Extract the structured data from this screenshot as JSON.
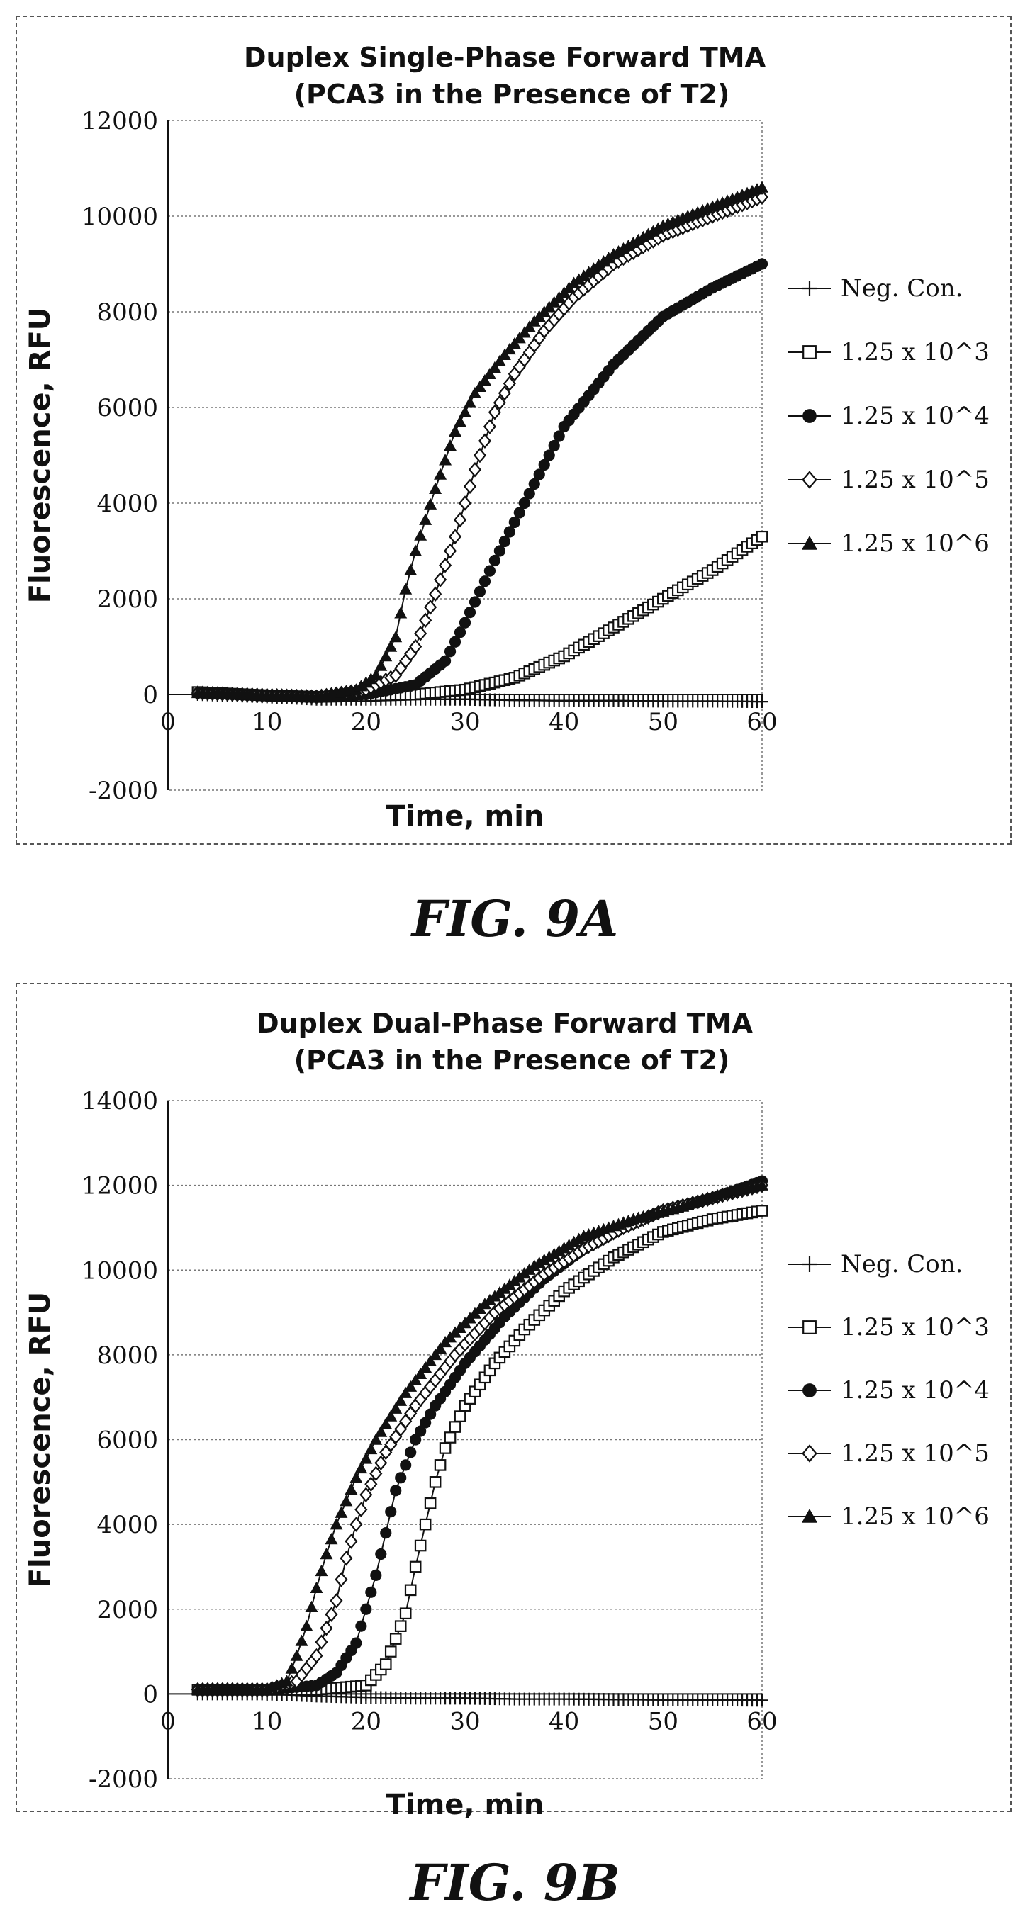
{
  "figures": [
    {
      "caption": "FIG. 9A"
    },
    {
      "caption": "FIG. 9B"
    }
  ],
  "chart_data": [
    {
      "type": "line",
      "title": "Duplex Single-Phase Forward TMA",
      "subtitle": "(PCA3 in the Presence of T2)",
      "xlabel": "Time, min",
      "ylabel": "Fluorescence, RFU",
      "xlim": [
        0,
        60
      ],
      "ylim": [
        -2000,
        12000
      ],
      "xticks": [
        0,
        10,
        20,
        30,
        40,
        50,
        60
      ],
      "yticks": [
        -2000,
        0,
        2000,
        4000,
        6000,
        8000,
        10000,
        12000
      ],
      "grid": "horizontal",
      "legend_position": "right",
      "series": [
        {
          "name": "Neg. Con.",
          "marker": "plus",
          "x": [
            3,
            10,
            15,
            20,
            25,
            30,
            35,
            40,
            45,
            50,
            55,
            60
          ],
          "y": [
            0,
            -50,
            -100,
            -100,
            -100,
            -100,
            -120,
            -130,
            -130,
            -140,
            -140,
            -150
          ]
        },
        {
          "name": "1.25 x 10^3",
          "marker": "square-open",
          "x": [
            3,
            10,
            15,
            20,
            25,
            30,
            35,
            40,
            45,
            50,
            55,
            60
          ],
          "y": [
            50,
            -20,
            -50,
            -30,
            0,
            100,
            350,
            800,
            1400,
            2000,
            2600,
            3300
          ]
        },
        {
          "name": "1.25 x 10^4",
          "marker": "circle-filled",
          "x": [
            3,
            10,
            15,
            20,
            25,
            28,
            30,
            33,
            36,
            40,
            45,
            50,
            55,
            60
          ],
          "y": [
            30,
            -30,
            -60,
            0,
            200,
            700,
            1500,
            2800,
            4000,
            5600,
            6900,
            7900,
            8500,
            9000
          ]
        },
        {
          "name": "1.25 x 10^5",
          "marker": "diamond-open",
          "x": [
            3,
            10,
            15,
            20,
            23,
            25,
            27,
            29,
            31,
            33,
            35,
            38,
            41,
            45,
            50,
            55,
            60
          ],
          "y": [
            30,
            -20,
            -50,
            100,
            400,
            1000,
            2100,
            3300,
            4700,
            5900,
            6700,
            7600,
            8300,
            9000,
            9600,
            10000,
            10400
          ]
        },
        {
          "name": "1.25 x 10^6",
          "marker": "triangle-filled",
          "x": [
            3,
            10,
            15,
            19,
            21,
            23,
            24,
            25,
            27,
            29,
            31,
            34,
            37,
            41,
            45,
            50,
            55,
            60
          ],
          "y": [
            30,
            -20,
            -50,
            100,
            400,
            1200,
            2200,
            3000,
            4300,
            5500,
            6300,
            7100,
            7800,
            8600,
            9200,
            9800,
            10200,
            10600
          ]
        }
      ]
    },
    {
      "type": "line",
      "title": "Duplex Dual-Phase Forward TMA",
      "subtitle": "(PCA3 in the Presence of T2)",
      "xlabel": "Time, min",
      "ylabel": "Fluorescence, RFU",
      "xlim": [
        0,
        60
      ],
      "ylim": [
        -2000,
        14000
      ],
      "xticks": [
        0,
        10,
        20,
        30,
        40,
        50,
        60
      ],
      "yticks": [
        -2000,
        0,
        2000,
        4000,
        6000,
        8000,
        10000,
        12000,
        14000
      ],
      "grid": "horizontal",
      "legend_position": "right",
      "series": [
        {
          "name": "Neg. Con.",
          "marker": "plus",
          "x": [
            3,
            10,
            15,
            20,
            25,
            30,
            35,
            40,
            45,
            50,
            55,
            60
          ],
          "y": [
            0,
            0,
            -50,
            -80,
            -100,
            -100,
            -120,
            -120,
            -130,
            -140,
            -140,
            -150
          ]
        },
        {
          "name": "1.25 x 10^3",
          "marker": "square-open",
          "x": [
            3,
            10,
            15,
            20,
            22,
            24,
            25,
            26,
            27,
            28,
            30,
            33,
            36,
            40,
            45,
            50,
            55,
            60
          ],
          "y": [
            100,
            100,
            100,
            200,
            700,
            1900,
            3000,
            4000,
            5000,
            5800,
            6800,
            7800,
            8600,
            9500,
            10300,
            10900,
            11200,
            11400
          ]
        },
        {
          "name": "1.25 x 10^4",
          "marker": "circle-filled",
          "x": [
            3,
            10,
            15,
            17,
            19,
            21,
            22,
            23,
            25,
            27,
            30,
            34,
            38,
            42,
            46,
            50,
            55,
            60
          ],
          "y": [
            100,
            100,
            200,
            500,
            1200,
            2800,
            3800,
            4800,
            6000,
            6800,
            7800,
            8900,
            9800,
            10500,
            11000,
            11400,
            11700,
            12100
          ]
        },
        {
          "name": "1.25 x 10^5",
          "marker": "diamond-open",
          "x": [
            3,
            10,
            13,
            15,
            17,
            18,
            19,
            20,
            22,
            25,
            29,
            33,
            38,
            42,
            46,
            50,
            55,
            60
          ],
          "y": [
            100,
            100,
            300,
            900,
            2200,
            3200,
            4000,
            4700,
            5700,
            6800,
            8000,
            9000,
            9900,
            10500,
            11000,
            11400,
            11700,
            12000
          ]
        },
        {
          "name": "1.25 x 10^6",
          "marker": "triangle-filled",
          "x": [
            3,
            10,
            12,
            13,
            14,
            15,
            16,
            17,
            19,
            21,
            24,
            28,
            32,
            37,
            42,
            47,
            52,
            56,
            60
          ],
          "y": [
            100,
            100,
            300,
            900,
            1600,
            2500,
            3300,
            4000,
            5100,
            6000,
            7100,
            8300,
            9200,
            10100,
            10800,
            11200,
            11500,
            11800,
            12000
          ]
        }
      ]
    }
  ]
}
